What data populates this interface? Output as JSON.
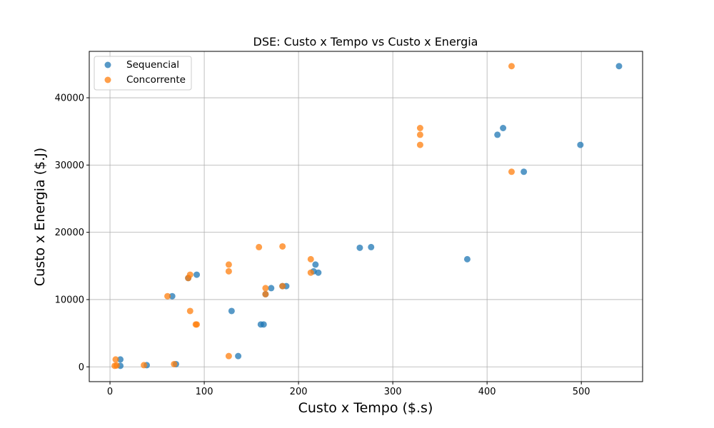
{
  "chart_data": {
    "type": "scatter",
    "title": "DSE: Custo x Tempo vs Custo x Energia",
    "xlabel": "Custo x Tempo ($.s)",
    "ylabel": "Custo x Energia ($.J)",
    "xlim": [
      -22,
      565
    ],
    "ylim": [
      -2200,
      46900
    ],
    "xticks": [
      0,
      100,
      200,
      300,
      400,
      500
    ],
    "yticks": [
      0,
      10000,
      20000,
      30000,
      40000
    ],
    "grid": true,
    "legend_position": "top-left",
    "series": [
      {
        "name": "Sequencial",
        "color": "#1f77b4",
        "points": [
          [
            540,
            44700
          ],
          [
            499,
            33000
          ],
          [
            439,
            29000
          ],
          [
            417,
            35500
          ],
          [
            411,
            34500
          ],
          [
            379,
            16000
          ],
          [
            277,
            17800
          ],
          [
            265,
            17700
          ],
          [
            221,
            14000
          ],
          [
            218,
            15200
          ],
          [
            216,
            14200
          ],
          [
            187,
            12000
          ],
          [
            183,
            12000
          ],
          [
            171,
            11700
          ],
          [
            165,
            10800
          ],
          [
            163,
            6300
          ],
          [
            160,
            6300
          ],
          [
            136,
            1600
          ],
          [
            129,
            8300
          ],
          [
            92,
            13700
          ],
          [
            83,
            13200
          ],
          [
            70,
            400
          ],
          [
            66,
            10500
          ],
          [
            39,
            250
          ],
          [
            11,
            1100
          ],
          [
            11,
            150
          ]
        ]
      },
      {
        "name": "Concorrente",
        "color": "#ff7f0e",
        "points": [
          [
            426,
            44700
          ],
          [
            426,
            29000
          ],
          [
            329,
            35500
          ],
          [
            329,
            34500
          ],
          [
            329,
            33000
          ],
          [
            213,
            16000
          ],
          [
            213,
            14000
          ],
          [
            183,
            17900
          ],
          [
            183,
            12000
          ],
          [
            158,
            17800
          ],
          [
            165,
            11700
          ],
          [
            165,
            10800
          ],
          [
            126,
            15200
          ],
          [
            126,
            14200
          ],
          [
            126,
            1600
          ],
          [
            92,
            6300
          ],
          [
            91,
            6300
          ],
          [
            85,
            13700
          ],
          [
            83,
            13200
          ],
          [
            85,
            8300
          ],
          [
            61,
            10500
          ],
          [
            68,
            400
          ],
          [
            36,
            250
          ],
          [
            6,
            1100
          ],
          [
            5,
            150
          ],
          [
            7,
            200
          ]
        ]
      }
    ]
  }
}
